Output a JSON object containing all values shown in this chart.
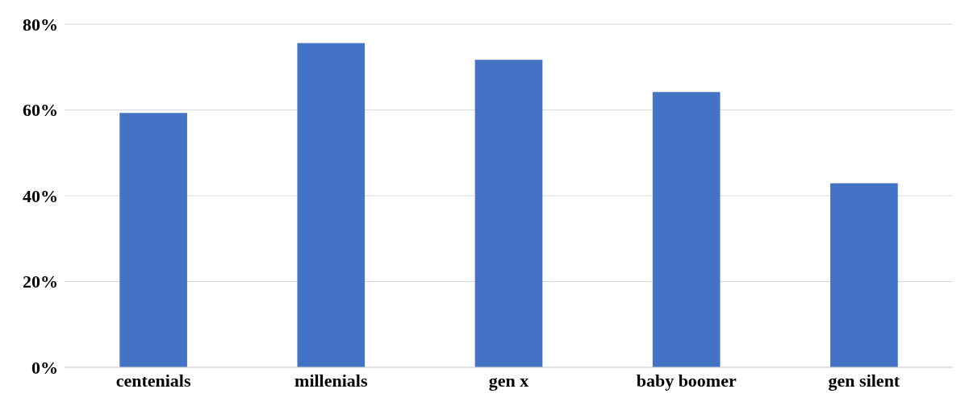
{
  "chart_data": {
    "type": "bar",
    "categories": [
      "centenials",
      "millenials",
      "gen x",
      "baby boomer",
      "gen silent"
    ],
    "values": [
      59.3,
      75.6,
      71.7,
      64.2,
      42.9
    ],
    "color": "#4472c4",
    "ylim": [
      0,
      80
    ],
    "yticks": [
      {
        "value": 0,
        "label": "0%"
      },
      {
        "value": 20,
        "label": "20%"
      },
      {
        "value": 40,
        "label": "40%"
      },
      {
        "value": 60,
        "label": "60%"
      },
      {
        "value": 80,
        "label": "80%"
      }
    ],
    "grid": "y"
  }
}
